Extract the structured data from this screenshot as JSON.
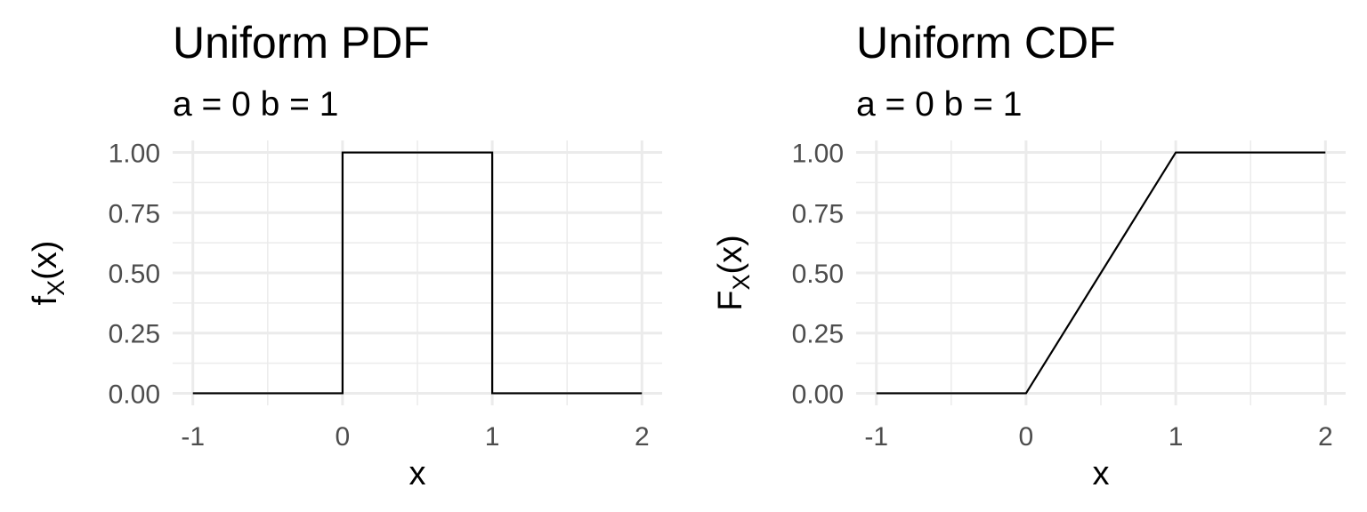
{
  "chart_data": [
    {
      "type": "line",
      "title": "Uniform PDF",
      "subtitle": "a = 0 b = 1",
      "xlabel": "x",
      "ylabel": {
        "main": "f",
        "sub": "X",
        "rest": "(x)"
      },
      "xlim": [
        -1,
        2
      ],
      "ylim": [
        0,
        1
      ],
      "x_ticks": [
        -1,
        0,
        1,
        2
      ],
      "x_tick_labels": [
        "-1",
        "0",
        "1",
        "2"
      ],
      "y_ticks": [
        0,
        0.25,
        0.5,
        0.75,
        1
      ],
      "y_tick_labels": [
        "0.00",
        "0.25",
        "0.50",
        "0.75",
        "1.00"
      ],
      "grid": true,
      "series": [
        {
          "x": [
            -1,
            0,
            0,
            1,
            1,
            2
          ],
          "y": [
            0,
            0,
            1,
            1,
            0,
            0
          ]
        }
      ]
    },
    {
      "type": "line",
      "title": "Uniform CDF",
      "subtitle": "a = 0 b = 1",
      "xlabel": "x",
      "ylabel": {
        "main": "F",
        "sub": "X",
        "rest": "(x)"
      },
      "xlim": [
        -1,
        2
      ],
      "ylim": [
        0,
        1
      ],
      "x_ticks": [
        -1,
        0,
        1,
        2
      ],
      "x_tick_labels": [
        "-1",
        "0",
        "1",
        "2"
      ],
      "y_ticks": [
        0,
        0.25,
        0.5,
        0.75,
        1
      ],
      "y_tick_labels": [
        "0.00",
        "0.25",
        "0.50",
        "0.75",
        "1.00"
      ],
      "grid": true,
      "series": [
        {
          "x": [
            -1,
            0,
            1,
            2
          ],
          "y": [
            0,
            0,
            1,
            1
          ]
        }
      ]
    }
  ]
}
